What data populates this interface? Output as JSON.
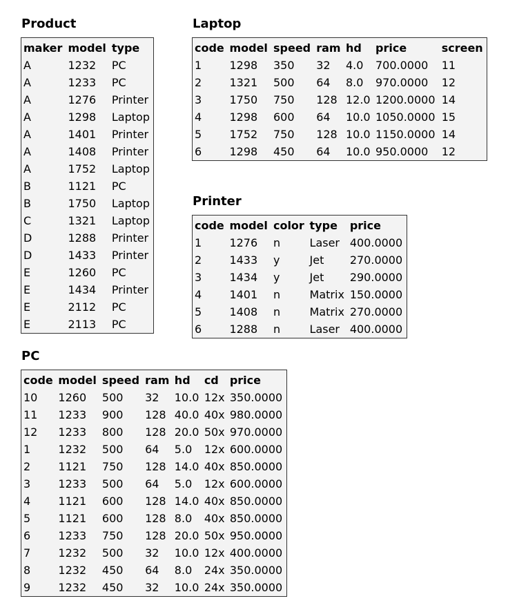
{
  "product": {
    "title": "Product",
    "columns": [
      "maker",
      "model",
      "type"
    ],
    "rows": [
      [
        "A",
        "1232",
        "PC"
      ],
      [
        "A",
        "1233",
        "PC"
      ],
      [
        "A",
        "1276",
        "Printer"
      ],
      [
        "A",
        "1298",
        "Laptop"
      ],
      [
        "A",
        "1401",
        "Printer"
      ],
      [
        "A",
        "1408",
        "Printer"
      ],
      [
        "A",
        "1752",
        "Laptop"
      ],
      [
        "B",
        "1121",
        "PC"
      ],
      [
        "B",
        "1750",
        "Laptop"
      ],
      [
        "C",
        "1321",
        "Laptop"
      ],
      [
        "D",
        "1288",
        "Printer"
      ],
      [
        "D",
        "1433",
        "Printer"
      ],
      [
        "E",
        "1260",
        "PC"
      ],
      [
        "E",
        "1434",
        "Printer"
      ],
      [
        "E",
        "2112",
        "PC"
      ],
      [
        "E",
        "2113",
        "PC"
      ]
    ]
  },
  "laptop": {
    "title": "Laptop",
    "columns": [
      "code",
      "model",
      "speed",
      "ram",
      "hd",
      "price",
      "screen"
    ],
    "rows": [
      [
        "1",
        "1298",
        "350",
        "32",
        "4.0",
        "700.0000",
        "11"
      ],
      [
        "2",
        "1321",
        "500",
        "64",
        "8.0",
        "970.0000",
        "12"
      ],
      [
        "3",
        "1750",
        "750",
        "128",
        "12.0",
        "1200.0000",
        "14"
      ],
      [
        "4",
        "1298",
        "600",
        "64",
        "10.0",
        "1050.0000",
        "15"
      ],
      [
        "5",
        "1752",
        "750",
        "128",
        "10.0",
        "1150.0000",
        "14"
      ],
      [
        "6",
        "1298",
        "450",
        "64",
        "10.0",
        "950.0000",
        "12"
      ]
    ]
  },
  "printer": {
    "title": "Printer",
    "columns": [
      "code",
      "model",
      "color",
      "type",
      "price"
    ],
    "rows": [
      [
        "1",
        "1276",
        "n",
        "Laser",
        "400.0000"
      ],
      [
        "2",
        "1433",
        "y",
        "Jet",
        "270.0000"
      ],
      [
        "3",
        "1434",
        "y",
        "Jet",
        "290.0000"
      ],
      [
        "4",
        "1401",
        "n",
        "Matrix",
        "150.0000"
      ],
      [
        "5",
        "1408",
        "n",
        "Matrix",
        "270.0000"
      ],
      [
        "6",
        "1288",
        "n",
        "Laser",
        "400.0000"
      ]
    ]
  },
  "pc": {
    "title": "PC",
    "columns": [
      "code",
      "model",
      "speed",
      "ram",
      "hd",
      "cd",
      "price"
    ],
    "rows": [
      [
        "10",
        "1260",
        "500",
        "32",
        "10.0",
        "12x",
        "350.0000"
      ],
      [
        "11",
        "1233",
        "900",
        "128",
        "40.0",
        "40x",
        "980.0000"
      ],
      [
        "12",
        "1233",
        "800",
        "128",
        "20.0",
        "50x",
        "970.0000"
      ],
      [
        "1",
        "1232",
        "500",
        "64",
        "5.0",
        "12x",
        "600.0000"
      ],
      [
        "2",
        "1121",
        "750",
        "128",
        "14.0",
        "40x",
        "850.0000"
      ],
      [
        "3",
        "1233",
        "500",
        "64",
        "5.0",
        "12x",
        "600.0000"
      ],
      [
        "4",
        "1121",
        "600",
        "128",
        "14.0",
        "40x",
        "850.0000"
      ],
      [
        "5",
        "1121",
        "600",
        "128",
        "8.0",
        "40x",
        "850.0000"
      ],
      [
        "6",
        "1233",
        "750",
        "128",
        "20.0",
        "50x",
        "950.0000"
      ],
      [
        "7",
        "1232",
        "500",
        "32",
        "10.0",
        "12x",
        "400.0000"
      ],
      [
        "8",
        "1232",
        "450",
        "64",
        "8.0",
        "24x",
        "350.0000"
      ],
      [
        "9",
        "1232",
        "450",
        "32",
        "10.0",
        "24x",
        "350.0000"
      ]
    ]
  }
}
